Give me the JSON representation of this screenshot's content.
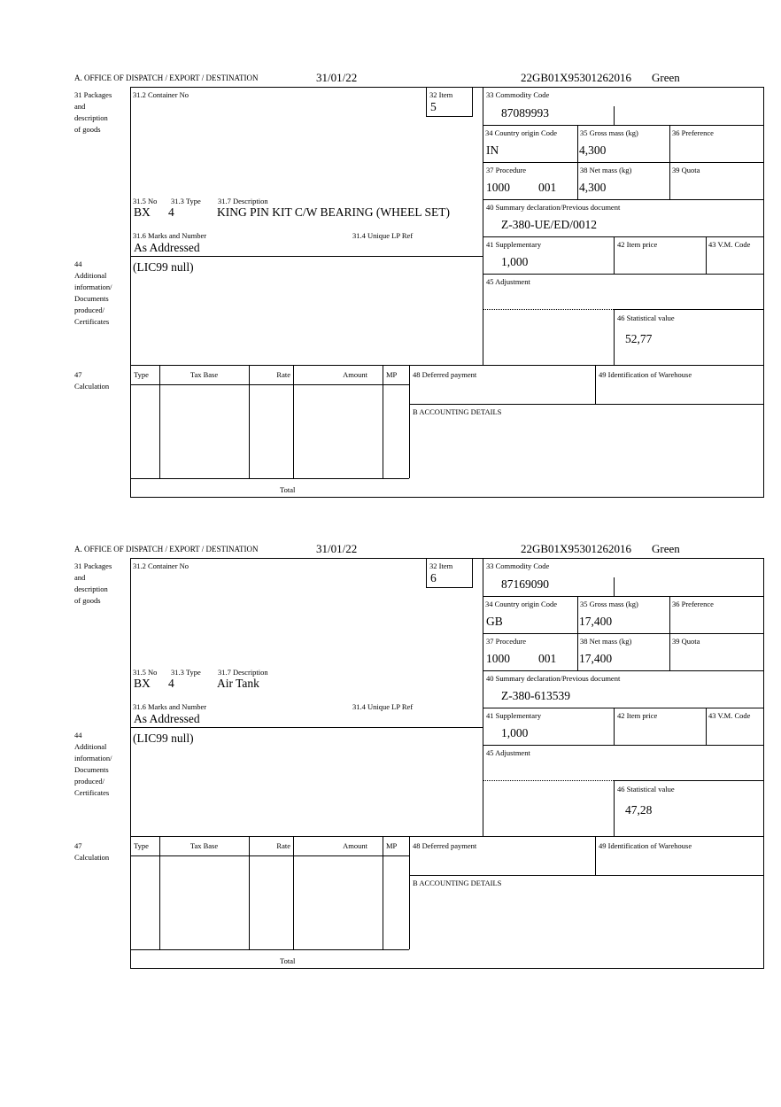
{
  "labels": {
    "office": "A.  OFFICE OF DISPATCH / EXPORT / DESTINATION",
    "box31": [
      "31 Packages",
      "and",
      "description",
      "of goods"
    ],
    "container_no": "31.2 Container No",
    "item": "32 Item",
    "no": "31.5 No",
    "type": "31.3 Type",
    "description": "31.7 Description",
    "marks": "31.6 Marks and Number",
    "unique_lp": "31.4 Unique LP Ref",
    "box44": [
      "44",
      "Additional",
      "information/",
      "Documents",
      "produced/",
      "Certificates"
    ],
    "commodity": "33 Commodity Code",
    "country": "34 Country origin Code",
    "gross": "35 Gross mass (kg)",
    "preference": "36 Preference",
    "procedure": "37 Procedure",
    "net": "38 Net mass (kg)",
    "quota": "39 Quota",
    "summary": "40 Summary declaration/Previous document",
    "supplementary": "41 Supplementary",
    "item_price": "42 Item price",
    "vm_code": "43 V.M. Code",
    "adjustment": "45 Adjustment",
    "statistical": "46 Statistical value",
    "box47": [
      "47",
      "Calculation"
    ],
    "calc_cols": [
      "Type",
      "Tax Base",
      "Rate",
      "Amount",
      "MP"
    ],
    "total": "Total",
    "deferred": "48 Deferred payment",
    "warehouse": "49 Identification of Warehouse",
    "accounting": "B ACCOUNTING DETAILS"
  },
  "blocks": [
    {
      "date": "31/01/22",
      "reference": "22GB01X95301262016",
      "route": "Green",
      "item": "5",
      "package_no": "BX",
      "package_type": "4",
      "description": "KING PIN KIT C/W BEARING (WHEEL SET)",
      "marks": "As Addressed",
      "additional_info": "(LIC99 null)",
      "commodity_code": "87089993",
      "country_origin": "IN",
      "gross_mass": "4,300",
      "procedure": "1000",
      "procedure_additional": "001",
      "net_mass": "4,300",
      "summary_doc": "Z-380-UE/ED/0012",
      "supplementary": "1,000",
      "statistical_value": "52,77"
    },
    {
      "date": "31/01/22",
      "reference": "22GB01X95301262016",
      "route": "Green",
      "item": "6",
      "package_no": "BX",
      "package_type": "4",
      "description": "Air Tank",
      "marks": "As Addressed",
      "additional_info": "(LIC99 null)",
      "commodity_code": "87169090",
      "country_origin": "GB",
      "gross_mass": "17,400",
      "procedure": "1000",
      "procedure_additional": "001",
      "net_mass": "17,400",
      "summary_doc": "Z-380-613539",
      "supplementary": "1,000",
      "statistical_value": "47,28"
    }
  ]
}
